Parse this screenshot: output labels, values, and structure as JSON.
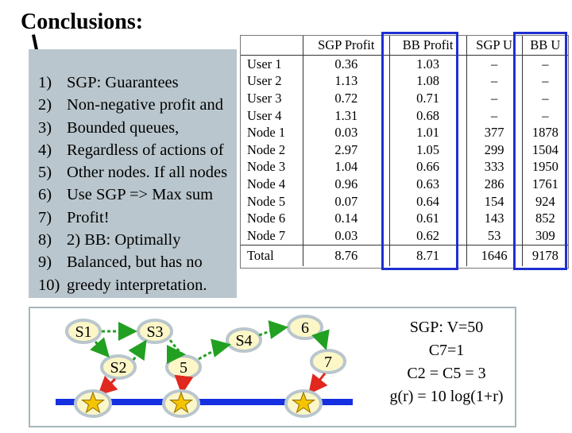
{
  "title": "Conclusions:",
  "list": [
    {
      "num": "1)",
      "text": "SGP: Guarantees"
    },
    {
      "num": "2)",
      "text": "Non-negative profit and"
    },
    {
      "num": "3)",
      "text": "Bounded queues,"
    },
    {
      "num": "4)",
      "text": "Regardless of actions of"
    },
    {
      "num": "5)",
      "text": "Other nodes. If all nodes"
    },
    {
      "num": "6)",
      "text": "Use SGP => Max sum"
    },
    {
      "num": "7)",
      "text": "Profit!"
    },
    {
      "num": "8)",
      "text": "2) BB: Optimally"
    },
    {
      "num": "9)",
      "text": "Balanced, but has no"
    },
    {
      "num": "10)",
      "text": "greedy interpretation."
    }
  ],
  "table": {
    "headers": [
      "",
      "SGP Profit",
      "BB Profit",
      "SGP U",
      "BB U"
    ],
    "rows": [
      [
        "User 1",
        "0.36",
        "1.03",
        "–",
        "–"
      ],
      [
        "User 2",
        "1.13",
        "1.08",
        "–",
        "–"
      ],
      [
        "User 3",
        "0.72",
        "0.71",
        "–",
        "–"
      ],
      [
        "User 4",
        "1.31",
        "0.68",
        "–",
        "–"
      ],
      [
        "Node 1",
        "0.03",
        "1.01",
        "377",
        "1878"
      ],
      [
        "Node 2",
        "2.97",
        "1.05",
        "299",
        "1504"
      ],
      [
        "Node 3",
        "1.04",
        "0.66",
        "333",
        "1950"
      ],
      [
        "Node 4",
        "0.96",
        "0.63",
        "286",
        "1761"
      ],
      [
        "Node 5",
        "0.07",
        "0.64",
        "154",
        "924"
      ],
      [
        "Node 6",
        "0.14",
        "0.61",
        "143",
        "852"
      ],
      [
        "Node 7",
        "0.03",
        "0.62",
        "53",
        "309"
      ]
    ],
    "total": [
      "Total",
      "8.76",
      "8.71",
      "1646",
      "9178"
    ]
  },
  "diagram": {
    "nodes": [
      "S1",
      "S3",
      "S4",
      "6",
      "S2",
      "5",
      "7"
    ]
  },
  "notes": [
    "SGP: V=50",
    "C7=1",
    "C2 = C5 = 3",
    "g(r) = 10 log(1+r)"
  ],
  "colors": {
    "highlight": "#1f2fd1",
    "node_fill": "#fdf7c8",
    "node_stroke": "#b9c6cd",
    "arrow_green": "#22a022",
    "arrow_red": "#e0281e",
    "line_blue": "#1530e0",
    "star": "#f5c400"
  }
}
